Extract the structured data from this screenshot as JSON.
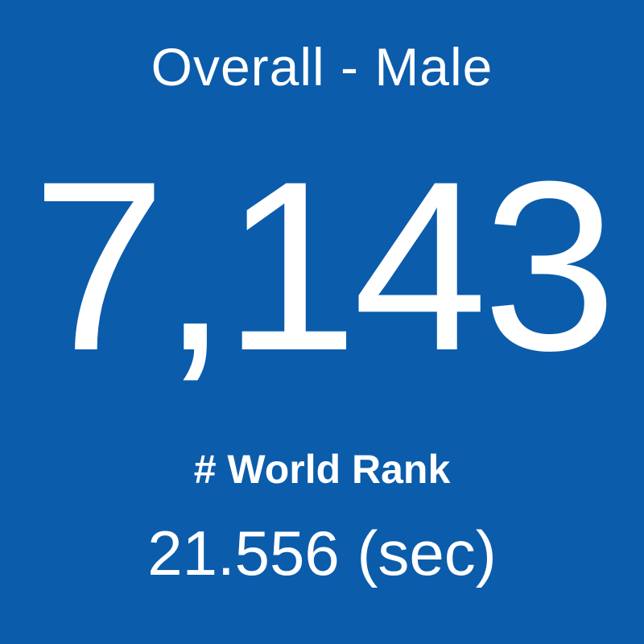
{
  "tile": {
    "title": "Overall - Male",
    "value": "7,143",
    "label": "# World Rank",
    "detail": "21.556 (sec)"
  }
}
